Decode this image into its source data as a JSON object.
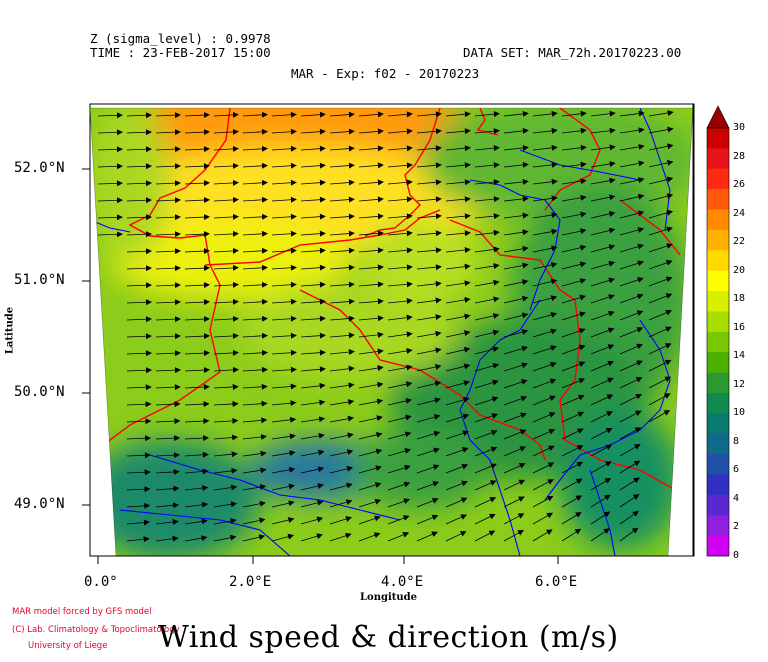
{
  "header": {
    "z_level": "Z (sigma_level) : 0.9978",
    "time": "TIME : 23-FEB-2017 15:00",
    "dataset": "DATA SET: MAR_72h.20170223.00",
    "experiment": "MAR - Exp: f02 - 20170223"
  },
  "axes": {
    "xlabel": "Longitude",
    "ylabel": "Latitude",
    "x_ticks": [
      "0.0°",
      "2.0°E",
      "4.0°E",
      "6.0°E"
    ],
    "y_ticks": [
      "52.0°N",
      "51.0°N",
      "50.0°N",
      "49.0°N"
    ]
  },
  "colorbar": {
    "labels": [
      "30",
      "28",
      "26",
      "24",
      "22",
      "20",
      "18",
      "16",
      "14",
      "12",
      "10",
      "8",
      "6",
      "4",
      "2",
      "0"
    ],
    "colors": [
      "#cc0000",
      "#e8141a",
      "#ff2a10",
      "#ff5a0a",
      "#ff8a00",
      "#ffb000",
      "#ffd800",
      "#ffff00",
      "#d8f000",
      "#aadd00",
      "#7ac800",
      "#4cb000",
      "#2a9a30",
      "#118a50",
      "#0a7a70",
      "#106a8a",
      "#2050a8",
      "#3030c0",
      "#5a28d0",
      "#9020e0",
      "#d000f0"
    ]
  },
  "credits": {
    "line1": "MAR model forced by GFS model",
    "line2": "(C) Lab. Climatology & Topoclimatology",
    "line3": "University of Liege"
  },
  "title": "Wind speed & direction (m/s)",
  "legend_colors": {
    "border": "#ff0000",
    "rivers": "#0000ff",
    "arrows": "#000000"
  }
}
